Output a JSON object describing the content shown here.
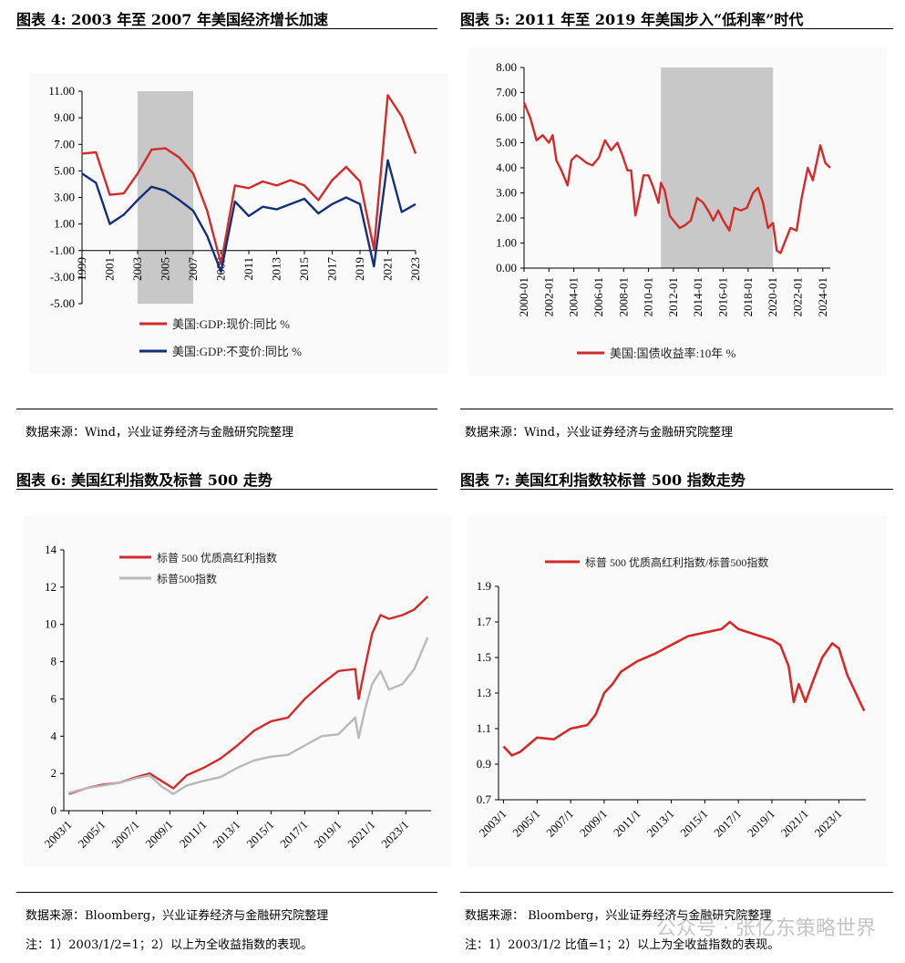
{
  "panels": {
    "p4": {
      "title": "图表 4:   2003 年至 2007 年美国经济增长加速",
      "source": "数据来源：Wind，兴业证券经济与金融研究院整理"
    },
    "p5": {
      "title": "图表 5:   2011 年至 2019 年美国步入“低利率”时代",
      "source": "数据来源：Wind，兴业证券经济与金融研究院整理"
    },
    "p6": {
      "title": "图表 6:  美国红利指数及标普 500 走势",
      "source": "数据来源：Bloomberg，兴业证券经济与金融研究院整理",
      "note": "注：1）2003/1/2=1；2）以上为全收益指数的表现。"
    },
    "p7": {
      "title": "图表 7:   美国红利指数较标普 500 指数走势",
      "source": "数据来源：  Bloomberg，兴业证券经济与金融研究院整理",
      "note": "注：1）2003/1/2 比值=1；2）以上为全收益指数的表现。"
    }
  },
  "watermark": "公众号 · 张亿东策略世界",
  "chart_data": [
    {
      "type": "line",
      "ylim": [
        -5,
        11
      ],
      "yticks": [
        "11.00",
        "9.00",
        "7.00",
        "5.00",
        "3.00",
        "1.00",
        "-1.00",
        "-3.00",
        "-5.00"
      ],
      "xticks": [
        "1999",
        "2001",
        "2003",
        "2005",
        "2007",
        "2009",
        "2011",
        "2013",
        "2015",
        "2017",
        "2019",
        "2021",
        "2023"
      ],
      "shaded": [
        2003,
        2007
      ],
      "x": [
        1999,
        2000,
        2001,
        2002,
        2003,
        2004,
        2005,
        2006,
        2007,
        2008,
        2009,
        2010,
        2011,
        2012,
        2013,
        2014,
        2015,
        2016,
        2017,
        2018,
        2019,
        2020,
        2021,
        2022,
        2023
      ],
      "series": [
        {
          "name": "美国:GDP:现价:同比 %",
          "color": "#d42a2a",
          "values": [
            6.3,
            6.4,
            3.2,
            3.3,
            4.8,
            6.6,
            6.7,
            6.0,
            4.8,
            2.0,
            -2.0,
            3.9,
            3.7,
            4.2,
            3.9,
            4.3,
            3.9,
            2.8,
            4.3,
            5.3,
            4.2,
            -0.9,
            10.7,
            9.1,
            6.3
          ]
        },
        {
          "name": "美国:GDP:不变价:同比 %",
          "color": "#14307a",
          "values": [
            4.8,
            4.1,
            1.0,
            1.7,
            2.8,
            3.8,
            3.5,
            2.8,
            2.0,
            0.1,
            -2.6,
            2.7,
            1.6,
            2.3,
            2.1,
            2.5,
            2.9,
            1.8,
            2.5,
            3.0,
            2.5,
            -2.2,
            5.8,
            1.9,
            2.5
          ]
        }
      ]
    },
    {
      "type": "line",
      "ylim": [
        0,
        8
      ],
      "yticks": [
        "8.00",
        "7.00",
        "6.00",
        "5.00",
        "4.00",
        "3.00",
        "2.00",
        "1.00",
        "0.00"
      ],
      "xticks": [
        "2000-01",
        "2002-01",
        "2004-01",
        "2006-01",
        "2008-01",
        "2010-01",
        "2012-01",
        "2014-01",
        "2016-01",
        "2018-01",
        "2020-01",
        "2022-01",
        "2024-01"
      ],
      "shaded": [
        2011,
        2020
      ],
      "x": [
        2000.0,
        2000.5,
        2001.0,
        2001.5,
        2002.0,
        2002.3,
        2002.6,
        2003.0,
        2003.5,
        2003.8,
        2004.2,
        2004.5,
        2005.0,
        2005.5,
        2006.0,
        2006.5,
        2007.0,
        2007.5,
        2007.9,
        2008.3,
        2008.6,
        2008.95,
        2009.3,
        2009.6,
        2010.0,
        2010.4,
        2010.8,
        2011.0,
        2011.3,
        2011.7,
        2012.0,
        2012.5,
        2012.9,
        2013.4,
        2013.9,
        2014.4,
        2014.9,
        2015.2,
        2015.6,
        2016.0,
        2016.5,
        2016.9,
        2017.4,
        2017.9,
        2018.4,
        2018.8,
        2019.2,
        2019.6,
        2020.0,
        2020.3,
        2020.6,
        2021.0,
        2021.4,
        2021.9,
        2022.3,
        2022.8,
        2023.2,
        2023.8,
        2024.2,
        2024.6
      ],
      "series": [
        {
          "name": "美国:国债收益率:10年 %",
          "color": "#d42a2a",
          "values": [
            6.6,
            6.0,
            5.1,
            5.3,
            5.0,
            5.3,
            4.3,
            3.9,
            3.3,
            4.3,
            4.5,
            4.4,
            4.2,
            4.1,
            4.4,
            5.1,
            4.7,
            5.0,
            4.5,
            3.9,
            3.9,
            2.1,
            2.9,
            3.7,
            3.7,
            3.2,
            2.6,
            3.4,
            3.1,
            2.1,
            1.9,
            1.6,
            1.7,
            1.9,
            2.8,
            2.6,
            2.2,
            1.9,
            2.3,
            1.9,
            1.5,
            2.4,
            2.3,
            2.4,
            3.0,
            3.2,
            2.6,
            1.6,
            1.8,
            0.7,
            0.6,
            1.1,
            1.6,
            1.5,
            2.8,
            4.0,
            3.5,
            4.9,
            4.2,
            4.0
          ]
        }
      ]
    },
    {
      "type": "line",
      "ylim": [
        0,
        14
      ],
      "yticks": [
        "14",
        "12",
        "10",
        "8",
        "6",
        "4",
        "2",
        "0"
      ],
      "xticks": [
        "2003/1",
        "2005/1",
        "2007/1",
        "2009/1",
        "2011/1",
        "2013/1",
        "2015/1",
        "2017/1",
        "2019/1",
        "2021/1",
        "2023/1"
      ],
      "x": [
        2003,
        2004,
        2005,
        2006,
        2007,
        2007.8,
        2008.5,
        2009.2,
        2010,
        2011,
        2012,
        2013,
        2014,
        2015,
        2016,
        2017,
        2018,
        2019,
        2020,
        2020.2,
        2020.6,
        2021,
        2021.5,
        2022,
        2022.8,
        2023.5,
        2024.3
      ],
      "series": [
        {
          "name": "标普 500 优质高红利指数",
          "color": "#d42a2a",
          "values": [
            0.9,
            1.2,
            1.4,
            1.5,
            1.8,
            2.0,
            1.6,
            1.2,
            1.9,
            2.3,
            2.8,
            3.5,
            4.3,
            4.8,
            5.0,
            6.0,
            6.8,
            7.5,
            7.6,
            6.0,
            7.8,
            9.5,
            10.5,
            10.3,
            10.5,
            10.8,
            11.5
          ]
        },
        {
          "name": "标普500指数",
          "color": "#b9b9b9",
          "values": [
            0.95,
            1.2,
            1.35,
            1.5,
            1.75,
            1.9,
            1.3,
            0.9,
            1.35,
            1.6,
            1.8,
            2.3,
            2.7,
            2.9,
            3.0,
            3.5,
            4.0,
            4.1,
            5.0,
            3.9,
            5.5,
            6.8,
            7.5,
            6.5,
            6.8,
            7.6,
            9.3
          ]
        }
      ]
    },
    {
      "type": "line",
      "ylim": [
        0.7,
        1.9
      ],
      "yticks": [
        "1.9",
        "1.7",
        "1.5",
        "1.3",
        "1.1",
        "0.9",
        "0.7"
      ],
      "xticks": [
        "2003/1",
        "2005/1",
        "2007/1",
        "2009/1",
        "2011/1",
        "2013/1",
        "2015/1",
        "2017/1",
        "2019/1",
        "2021/1",
        "2023/1"
      ],
      "x": [
        2003,
        2003.5,
        2004,
        2005,
        2006,
        2007,
        2008,
        2008.5,
        2009,
        2009.5,
        2010,
        2011,
        2011.5,
        2012,
        2013,
        2014,
        2015,
        2016,
        2016.5,
        2017,
        2018,
        2019,
        2019.5,
        2020,
        2020.3,
        2020.6,
        2021,
        2021.5,
        2022,
        2022.6,
        2023,
        2023.5,
        2024,
        2024.5
      ],
      "series": [
        {
          "name": "标普 500 优质高红利指数/标普500指数",
          "color": "#d42a2a",
          "values": [
            1.0,
            0.95,
            0.97,
            1.05,
            1.04,
            1.1,
            1.12,
            1.18,
            1.3,
            1.35,
            1.42,
            1.48,
            1.5,
            1.52,
            1.57,
            1.62,
            1.64,
            1.66,
            1.7,
            1.66,
            1.63,
            1.6,
            1.57,
            1.45,
            1.25,
            1.35,
            1.25,
            1.38,
            1.5,
            1.58,
            1.55,
            1.4,
            1.3,
            1.2
          ]
        }
      ]
    }
  ]
}
